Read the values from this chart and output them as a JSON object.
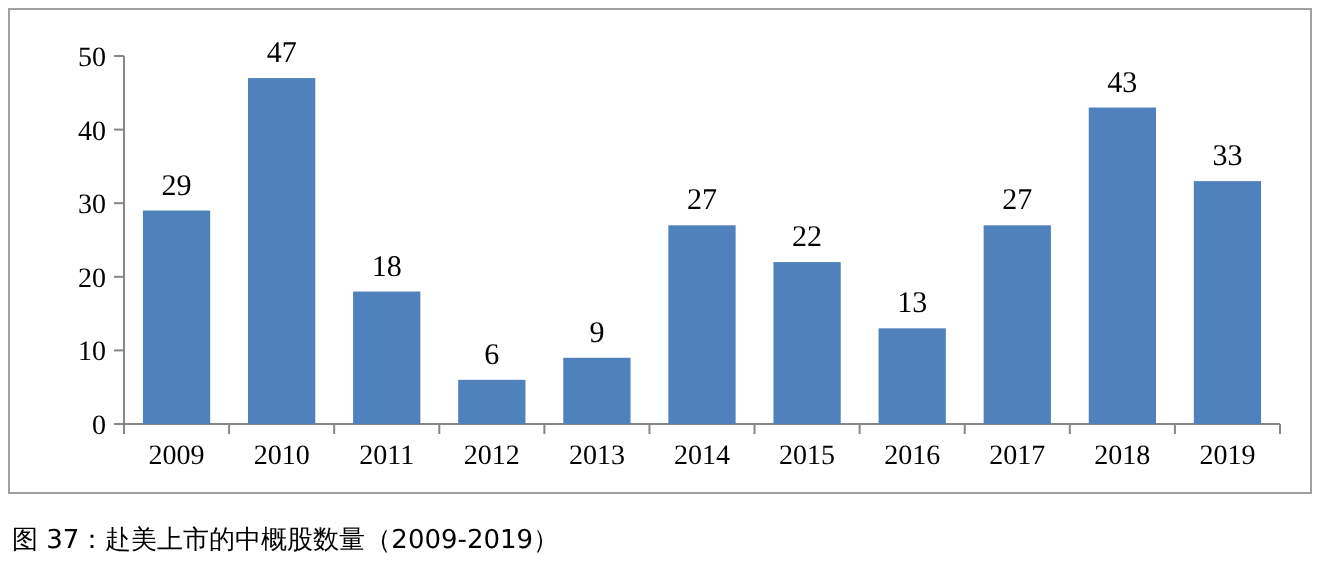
{
  "chart_data": {
    "type": "bar",
    "categories": [
      "2009",
      "2010",
      "2011",
      "2012",
      "2013",
      "2014",
      "2015",
      "2016",
      "2017",
      "2018",
      "2019"
    ],
    "values": [
      29,
      47,
      18,
      6,
      9,
      27,
      22,
      13,
      27,
      43,
      33
    ],
    "color": "#4f81bd",
    "ylim": [
      0,
      50
    ],
    "yticks": [
      0,
      10,
      20,
      30,
      40,
      50
    ],
    "data_labels": true,
    "annotations": [
      "图 37：赴美上市的中概股数量（2009-2019）"
    ]
  }
}
